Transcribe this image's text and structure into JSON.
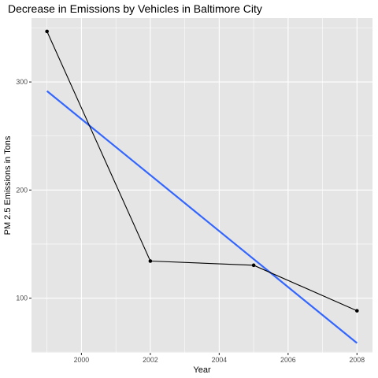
{
  "chart_data": {
    "type": "line",
    "title": "Decrease in Emissions by Vehicles in Baltimore City",
    "xlabel": "Year",
    "ylabel": "PM 2.5 Emissions in Tons",
    "x": [
      1999,
      2002,
      2005,
      2008
    ],
    "series": [
      {
        "values": [
          346.8,
          134.3,
          130.4,
          88.3
        ],
        "color": "#000000",
        "markers": true
      }
    ],
    "trend_line": {
      "x": [
        1999,
        2008
      ],
      "values": [
        291.6,
        58.4
      ],
      "color": "#3366FF"
    },
    "xlim": [
      1998.55,
      2008.45
    ],
    "ylim": [
      49.4,
      359.1
    ],
    "x_ticks": [
      2000,
      2002,
      2004,
      2006,
      2008
    ],
    "y_ticks": [
      100,
      200,
      300
    ],
    "x_minor_ticks": [
      1999,
      2001,
      2003,
      2005,
      2007
    ],
    "y_minor_ticks": [
      50,
      150,
      250,
      350
    ],
    "grid": true,
    "panel_color": "#E5E5E5",
    "grid_color": "#FFFFFF"
  }
}
